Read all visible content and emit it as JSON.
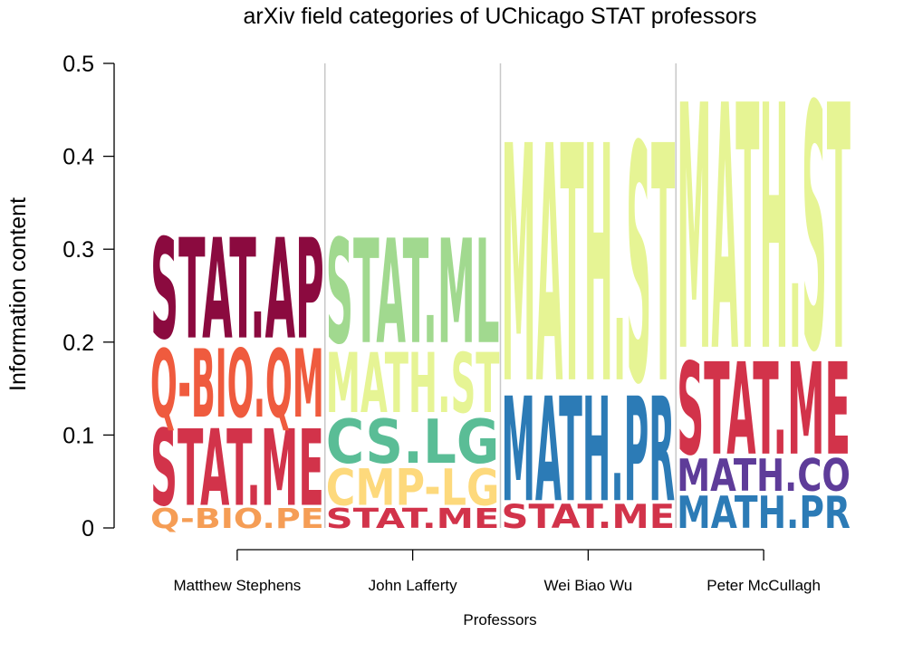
{
  "chart_data": {
    "type": "sequence-logo",
    "title": "arXiv field categories of UChicago STAT professors",
    "xlabel": "Professors",
    "ylabel": "Information content",
    "ylim": [
      0,
      0.5
    ],
    "yticks": [
      0,
      0.1,
      0.2,
      0.3,
      0.4,
      0.5
    ],
    "ytick_labels": [
      "0",
      "0.1",
      "0.2",
      "0.3",
      "0.4",
      "0.5"
    ],
    "grid": false,
    "legend": "none",
    "columns": [
      {
        "professor": "Matthew Stephens",
        "stack": [
          {
            "category": "Q-BIO.PE",
            "value": 0.025,
            "color": "#F59D55"
          },
          {
            "category": "STAT.ME",
            "value": 0.095,
            "color": "#D2334A"
          },
          {
            "category": "Q-BIO.QM",
            "value": 0.085,
            "color": "#EF5B3E"
          },
          {
            "category": "STAT.AP",
            "value": 0.125,
            "color": "#8B0A3F"
          }
        ]
      },
      {
        "professor": "John Lafferty",
        "stack": [
          {
            "category": "STAT.ME",
            "value": 0.025,
            "color": "#D2334A"
          },
          {
            "category": "CMP-LG",
            "value": 0.045,
            "color": "#FDD97C"
          },
          {
            "category": "CS.LG",
            "value": 0.055,
            "color": "#5ABD96"
          },
          {
            "category": "MATH.ST",
            "value": 0.075,
            "color": "#E6F494"
          },
          {
            "category": "STAT.ML",
            "value": 0.13,
            "color": "#A1D98F"
          }
        ]
      },
      {
        "professor": "Wei Biao Wu",
        "stack": [
          {
            "category": "STAT.ME",
            "value": 0.03,
            "color": "#D2334A"
          },
          {
            "category": "MATH.PR",
            "value": 0.13,
            "color": "#2C7BB6"
          },
          {
            "category": "MATH.ST",
            "value": 0.295,
            "color": "#E6F494"
          }
        ]
      },
      {
        "professor": "Peter McCullagh",
        "stack": [
          {
            "category": "MATH.PR",
            "value": 0.04,
            "color": "#2C7BB6"
          },
          {
            "category": "MATH.CO",
            "value": 0.04,
            "color": "#5E3C99"
          },
          {
            "category": "STAT.ME",
            "value": 0.115,
            "color": "#D2334A"
          },
          {
            "category": "MATH.ST",
            "value": 0.305,
            "color": "#E6F494"
          }
        ]
      }
    ]
  }
}
